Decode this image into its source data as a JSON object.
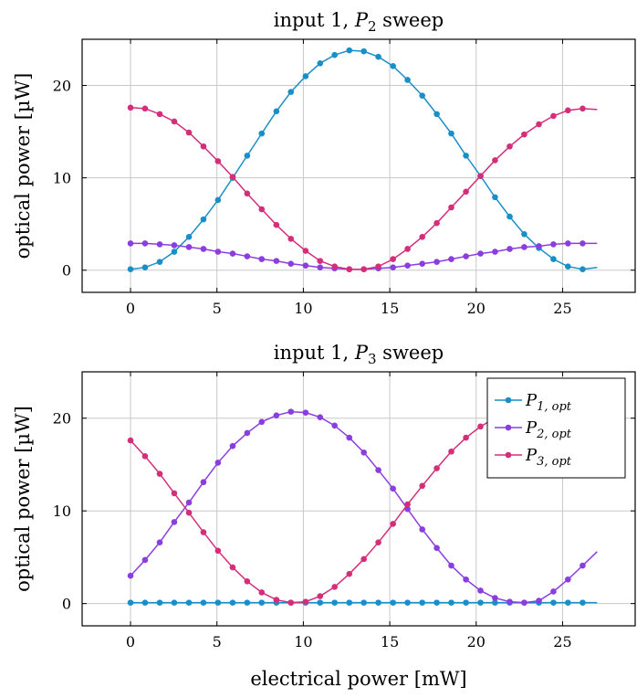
{
  "chart_data": [
    {
      "type": "line",
      "title_text": "input 1, ",
      "title_var": "P",
      "title_sub": "2",
      "title_rest": " sweep",
      "xlabel": "",
      "ylabel": "optical power [µW]",
      "xlim": [
        -2.8,
        29.2
      ],
      "ylim": [
        -2.4,
        25
      ],
      "xticks": [
        0,
        5,
        10,
        15,
        20,
        25
      ],
      "yticks": [
        0,
        10,
        20
      ],
      "grid": true,
      "legend": false,
      "x": [
        0,
        0.84,
        1.69,
        2.53,
        3.38,
        4.22,
        5.06,
        5.91,
        6.75,
        7.59,
        8.44,
        9.28,
        10.13,
        10.97,
        11.81,
        12.66,
        13.5,
        14.34,
        15.19,
        16.03,
        16.88,
        17.72,
        18.56,
        19.41,
        20.25,
        21.09,
        21.94,
        22.78,
        23.63,
        24.47,
        25.31,
        26.16,
        27.0
      ],
      "series": [
        {
          "color": "#1a8fc7",
          "marker_count": 32,
          "values": [
            0.1,
            0.3,
            0.9,
            2.0,
            3.6,
            5.5,
            7.6,
            10.0,
            12.4,
            14.8,
            17.2,
            19.3,
            21.0,
            22.4,
            23.3,
            23.8,
            23.7,
            23.1,
            22.1,
            20.6,
            18.9,
            16.9,
            14.8,
            12.4,
            10.2,
            7.9,
            5.8,
            3.9,
            2.4,
            1.2,
            0.4,
            0.1,
            0.3
          ]
        },
        {
          "color": "#8a3ee0",
          "marker_count": 32,
          "values": [
            2.9,
            2.9,
            2.8,
            2.7,
            2.5,
            2.3,
            2.0,
            1.8,
            1.5,
            1.2,
            1.0,
            0.7,
            0.5,
            0.3,
            0.2,
            0.1,
            0.1,
            0.2,
            0.3,
            0.5,
            0.7,
            0.9,
            1.2,
            1.5,
            1.8,
            2.0,
            2.3,
            2.5,
            2.6,
            2.8,
            2.9,
            2.9,
            2.9
          ]
        },
        {
          "color": "#d42e7a",
          "marker_count": 32,
          "values": [
            17.6,
            17.5,
            16.9,
            16.1,
            14.9,
            13.4,
            11.8,
            10.1,
            8.3,
            6.6,
            4.9,
            3.4,
            2.1,
            1.0,
            0.4,
            0.1,
            0.1,
            0.4,
            1.2,
            2.3,
            3.6,
            5.1,
            6.8,
            8.5,
            10.2,
            11.9,
            13.4,
            14.7,
            15.8,
            16.7,
            17.3,
            17.5,
            17.4
          ]
        }
      ]
    },
    {
      "type": "line",
      "title_text": "input 1, ",
      "title_var": "P",
      "title_sub": "3",
      "title_rest": " sweep",
      "xlabel": "electrical power [mW]",
      "ylabel": "optical power [µW]",
      "xlim": [
        -2.8,
        29.2
      ],
      "ylim": [
        -2.4,
        25
      ],
      "xticks": [
        0,
        5,
        10,
        15,
        20,
        25
      ],
      "yticks": [
        0,
        10,
        20
      ],
      "grid": true,
      "legend": true,
      "legend_position": "top-right",
      "x": [
        0,
        0.84,
        1.69,
        2.53,
        3.38,
        4.22,
        5.06,
        5.91,
        6.75,
        7.59,
        8.44,
        9.28,
        10.13,
        10.97,
        11.81,
        12.66,
        13.5,
        14.34,
        15.19,
        16.03,
        16.88,
        17.72,
        18.56,
        19.41,
        20.25,
        21.09,
        21.94,
        22.78,
        23.63,
        24.47,
        25.31,
        26.16,
        27.0
      ],
      "series": [
        {
          "name_var": "P",
          "name_sub": "1, opt",
          "color": "#1a8fc7",
          "marker_count": 32,
          "values": [
            0.1,
            0.1,
            0.1,
            0.1,
            0.1,
            0.1,
            0.1,
            0.1,
            0.1,
            0.1,
            0.1,
            0.1,
            0.1,
            0.1,
            0.1,
            0.1,
            0.1,
            0.1,
            0.1,
            0.1,
            0.1,
            0.1,
            0.1,
            0.1,
            0.1,
            0.1,
            0.1,
            0.1,
            0.1,
            0.1,
            0.1,
            0.1,
            0.1
          ]
        },
        {
          "name_var": "P",
          "name_sub": "2, opt",
          "color": "#8a3ee0",
          "marker_count": 32,
          "values": [
            3.0,
            4.7,
            6.6,
            8.8,
            10.9,
            13.1,
            15.2,
            17.0,
            18.4,
            19.6,
            20.3,
            20.7,
            20.6,
            20.1,
            19.2,
            17.9,
            16.3,
            14.4,
            12.4,
            10.2,
            8.0,
            6.0,
            4.1,
            2.6,
            1.4,
            0.6,
            0.2,
            0.1,
            0.3,
            1.3,
            2.6,
            4.1,
            5.6
          ]
        },
        {
          "name_var": "P",
          "name_sub": "3, opt",
          "color": "#d42e7a",
          "marker_count": 32,
          "values": [
            17.6,
            15.9,
            14.0,
            11.9,
            9.8,
            7.7,
            5.7,
            3.9,
            2.4,
            1.2,
            0.4,
            0.1,
            0.2,
            0.8,
            1.8,
            3.2,
            4.8,
            6.6,
            8.6,
            10.7,
            12.7,
            14.6,
            16.4,
            17.9,
            19.1,
            20.0,
            20.6,
            20.8,
            20.8,
            20.4,
            19.6,
            18.5,
            17.3
          ]
        }
      ]
    }
  ]
}
